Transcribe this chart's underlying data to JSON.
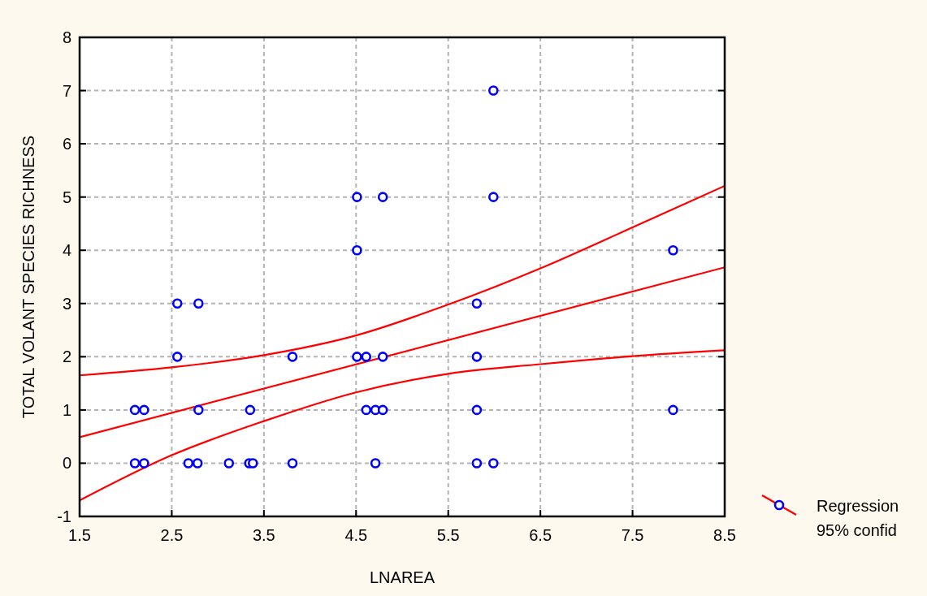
{
  "chart_data": {
    "type": "scatter",
    "xlabel": "LNAREA",
    "ylabel": "TOTAL VOLANT SPECIES RICHNESS",
    "xlim": [
      1.5,
      8.5
    ],
    "xticks": [
      1.5,
      2.5,
      3.5,
      4.5,
      5.5,
      6.5,
      7.5,
      8.5
    ],
    "ylim": [
      -1,
      8
    ],
    "yticks": [
      -1,
      0,
      1,
      2,
      3,
      4,
      5,
      6,
      7,
      8
    ],
    "grid": true,
    "legend": "bottom right",
    "series": [
      {
        "color": "#0000ff",
        "marker": "circle",
        "x": [
          2.1,
          2.2,
          2.68,
          2.78,
          3.12,
          3.34,
          3.38,
          3.81,
          4.71,
          5.81,
          5.99,
          2.1,
          2.2,
          2.79,
          3.35,
          4.61,
          4.71,
          4.79,
          5.81,
          7.94,
          2.56,
          3.81,
          4.51,
          4.61,
          4.79,
          5.81,
          2.56,
          2.79,
          5.81,
          4.51,
          7.94,
          4.51,
          4.79,
          5.99,
          5.99
        ],
        "values": [
          0,
          0,
          0,
          0,
          0,
          0,
          0,
          0,
          0,
          0,
          0,
          1,
          1,
          1,
          1,
          1,
          1,
          1,
          1,
          1,
          2,
          2,
          2,
          2,
          2,
          2,
          3,
          3,
          3,
          4,
          4,
          5,
          5,
          5,
          7
        ]
      },
      {
        "type": "line",
        "name": "Regression 95% confid",
        "color": "#ff0000",
        "marker": "none",
        "x": [
          1.5,
          8.5
        ],
        "values": [
          0.49,
          3.68
        ]
      },
      {
        "type": "line",
        "color": "#ff0000",
        "marker": "none",
        "x": [
          1.5,
          2.5,
          3.5,
          4.5,
          5.5,
          6.5,
          7.5,
          8.5
        ],
        "values": [
          1.65,
          1.8,
          2.03,
          2.4,
          2.98,
          3.66,
          4.43,
          5.21
        ]
      },
      {
        "type": "line",
        "color": "#ff0000",
        "marker": "none",
        "x": [
          1.5,
          2.5,
          3.5,
          4.5,
          5.5,
          6.5,
          7.5,
          8.5
        ],
        "values": [
          -0.7,
          0.15,
          0.79,
          1.33,
          1.68,
          1.86,
          2.01,
          2.12
        ]
      }
    ]
  }
}
